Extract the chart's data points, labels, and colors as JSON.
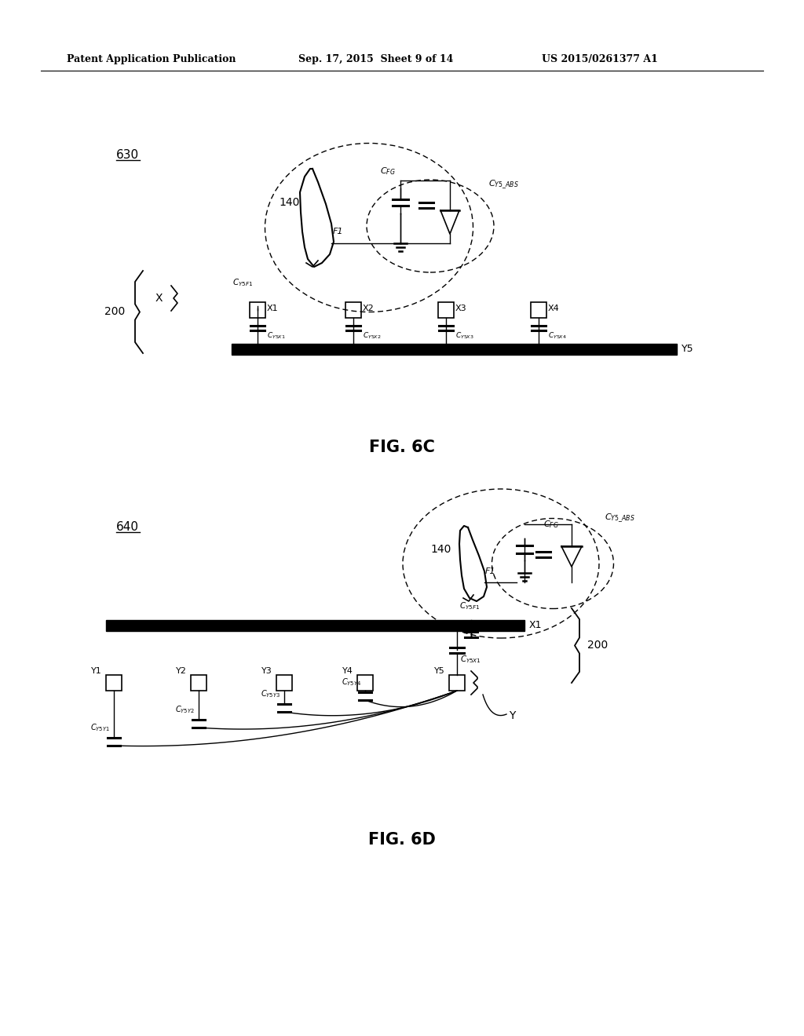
{
  "background_color": "#ffffff",
  "header_left": "Patent Application Publication",
  "header_mid": "Sep. 17, 2015  Sheet 9 of 14",
  "header_right": "US 2015/0261377 A1",
  "fig6c_label": "FIG. 6C",
  "fig6d_label": "FIG. 6D",
  "diagram630_label": "630",
  "diagram640_label": "640"
}
